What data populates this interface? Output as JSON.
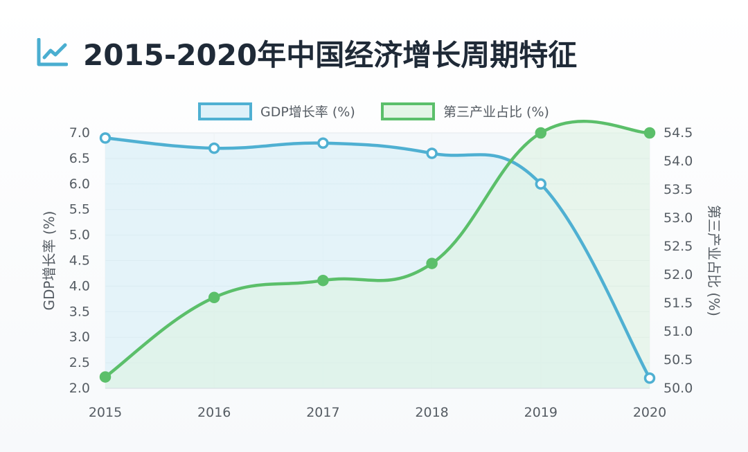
{
  "header": {
    "title": "2015-2020年中国经济增长周期特征",
    "icon": "chart-line-icon",
    "icon_color": "#4aaed0"
  },
  "chart_data": {
    "type": "line",
    "title": "",
    "x": [
      "2015",
      "2016",
      "2017",
      "2018",
      "2019",
      "2020"
    ],
    "series": [
      {
        "name": "GDP增长率 (%)",
        "axis": "left",
        "values": [
          6.9,
          6.7,
          6.8,
          6.6,
          6.0,
          2.2
        ],
        "color": "#4fb0d2",
        "fill": "#d6eef8",
        "point_fill": "#ffffff"
      },
      {
        "name": "第三产业占比 (%)",
        "axis": "right",
        "values": [
          50.2,
          51.6,
          51.9,
          52.2,
          54.5,
          54.5
        ],
        "color": "#5bbf6a",
        "fill": "#ddf2e0",
        "point_fill": "#5bbf6a"
      }
    ],
    "y_left": {
      "label": "GDP增长率 (%)",
      "range": [
        2.0,
        7.0
      ],
      "ticks": [
        "7.0",
        "6.5",
        "6.0",
        "5.5",
        "5.0",
        "4.5",
        "4.0",
        "3.5",
        "3.0",
        "2.5",
        "2.0"
      ]
    },
    "y_right": {
      "label": "第三产业占比 (%)",
      "range": [
        50.0,
        54.5
      ],
      "ticks": [
        "54.5",
        "54.0",
        "53.5",
        "53.0",
        "52.5",
        "52.0",
        "51.5",
        "51.0",
        "50.5",
        "50.0"
      ]
    },
    "legend_position": "top-center",
    "grid": true
  }
}
